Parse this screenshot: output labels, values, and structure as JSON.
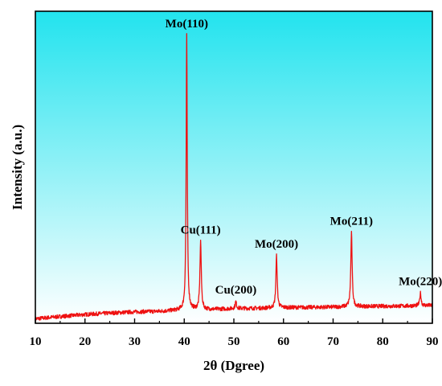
{
  "chart_data": {
    "type": "line",
    "xlabel": "2θ (Dgree)",
    "ylabel": "Intensity (a.u.)",
    "xlim": [
      10,
      90
    ],
    "xticks": [
      "10",
      "20",
      "30",
      "40",
      "50",
      "60",
      "70",
      "80",
      "90"
    ],
    "y_scale": "arbitrary units, no tick labels",
    "ylim": [
      0,
      1
    ],
    "background": "gradient cyan (#22e3ee) at top to white at bottom",
    "line_color": "#ee1111",
    "baseline": [
      [
        10,
        0.01
      ],
      [
        15,
        0.018
      ],
      [
        20,
        0.025
      ],
      [
        25,
        0.03
      ],
      [
        30,
        0.034
      ],
      [
        35,
        0.036
      ],
      [
        39,
        0.04
      ],
      [
        42,
        0.042
      ],
      [
        46,
        0.043
      ],
      [
        50,
        0.046
      ],
      [
        55,
        0.047
      ],
      [
        60,
        0.049
      ],
      [
        65,
        0.05
      ],
      [
        70,
        0.051
      ],
      [
        75,
        0.053
      ],
      [
        80,
        0.054
      ],
      [
        85,
        0.055
      ],
      [
        90,
        0.057
      ]
    ],
    "peaks": [
      {
        "x": 40.5,
        "y": 1.0,
        "label": "Mo(110)"
      },
      {
        "x": 43.3,
        "y": 0.28,
        "label": "Cu(111)"
      },
      {
        "x": 50.4,
        "y": 0.07,
        "label": "Cu(200)"
      },
      {
        "x": 58.6,
        "y": 0.23,
        "label": "Mo(200)"
      },
      {
        "x": 73.7,
        "y": 0.31,
        "label": "Mo(211)"
      },
      {
        "x": 87.6,
        "y": 0.1,
        "label": "Mo(220)"
      }
    ]
  }
}
